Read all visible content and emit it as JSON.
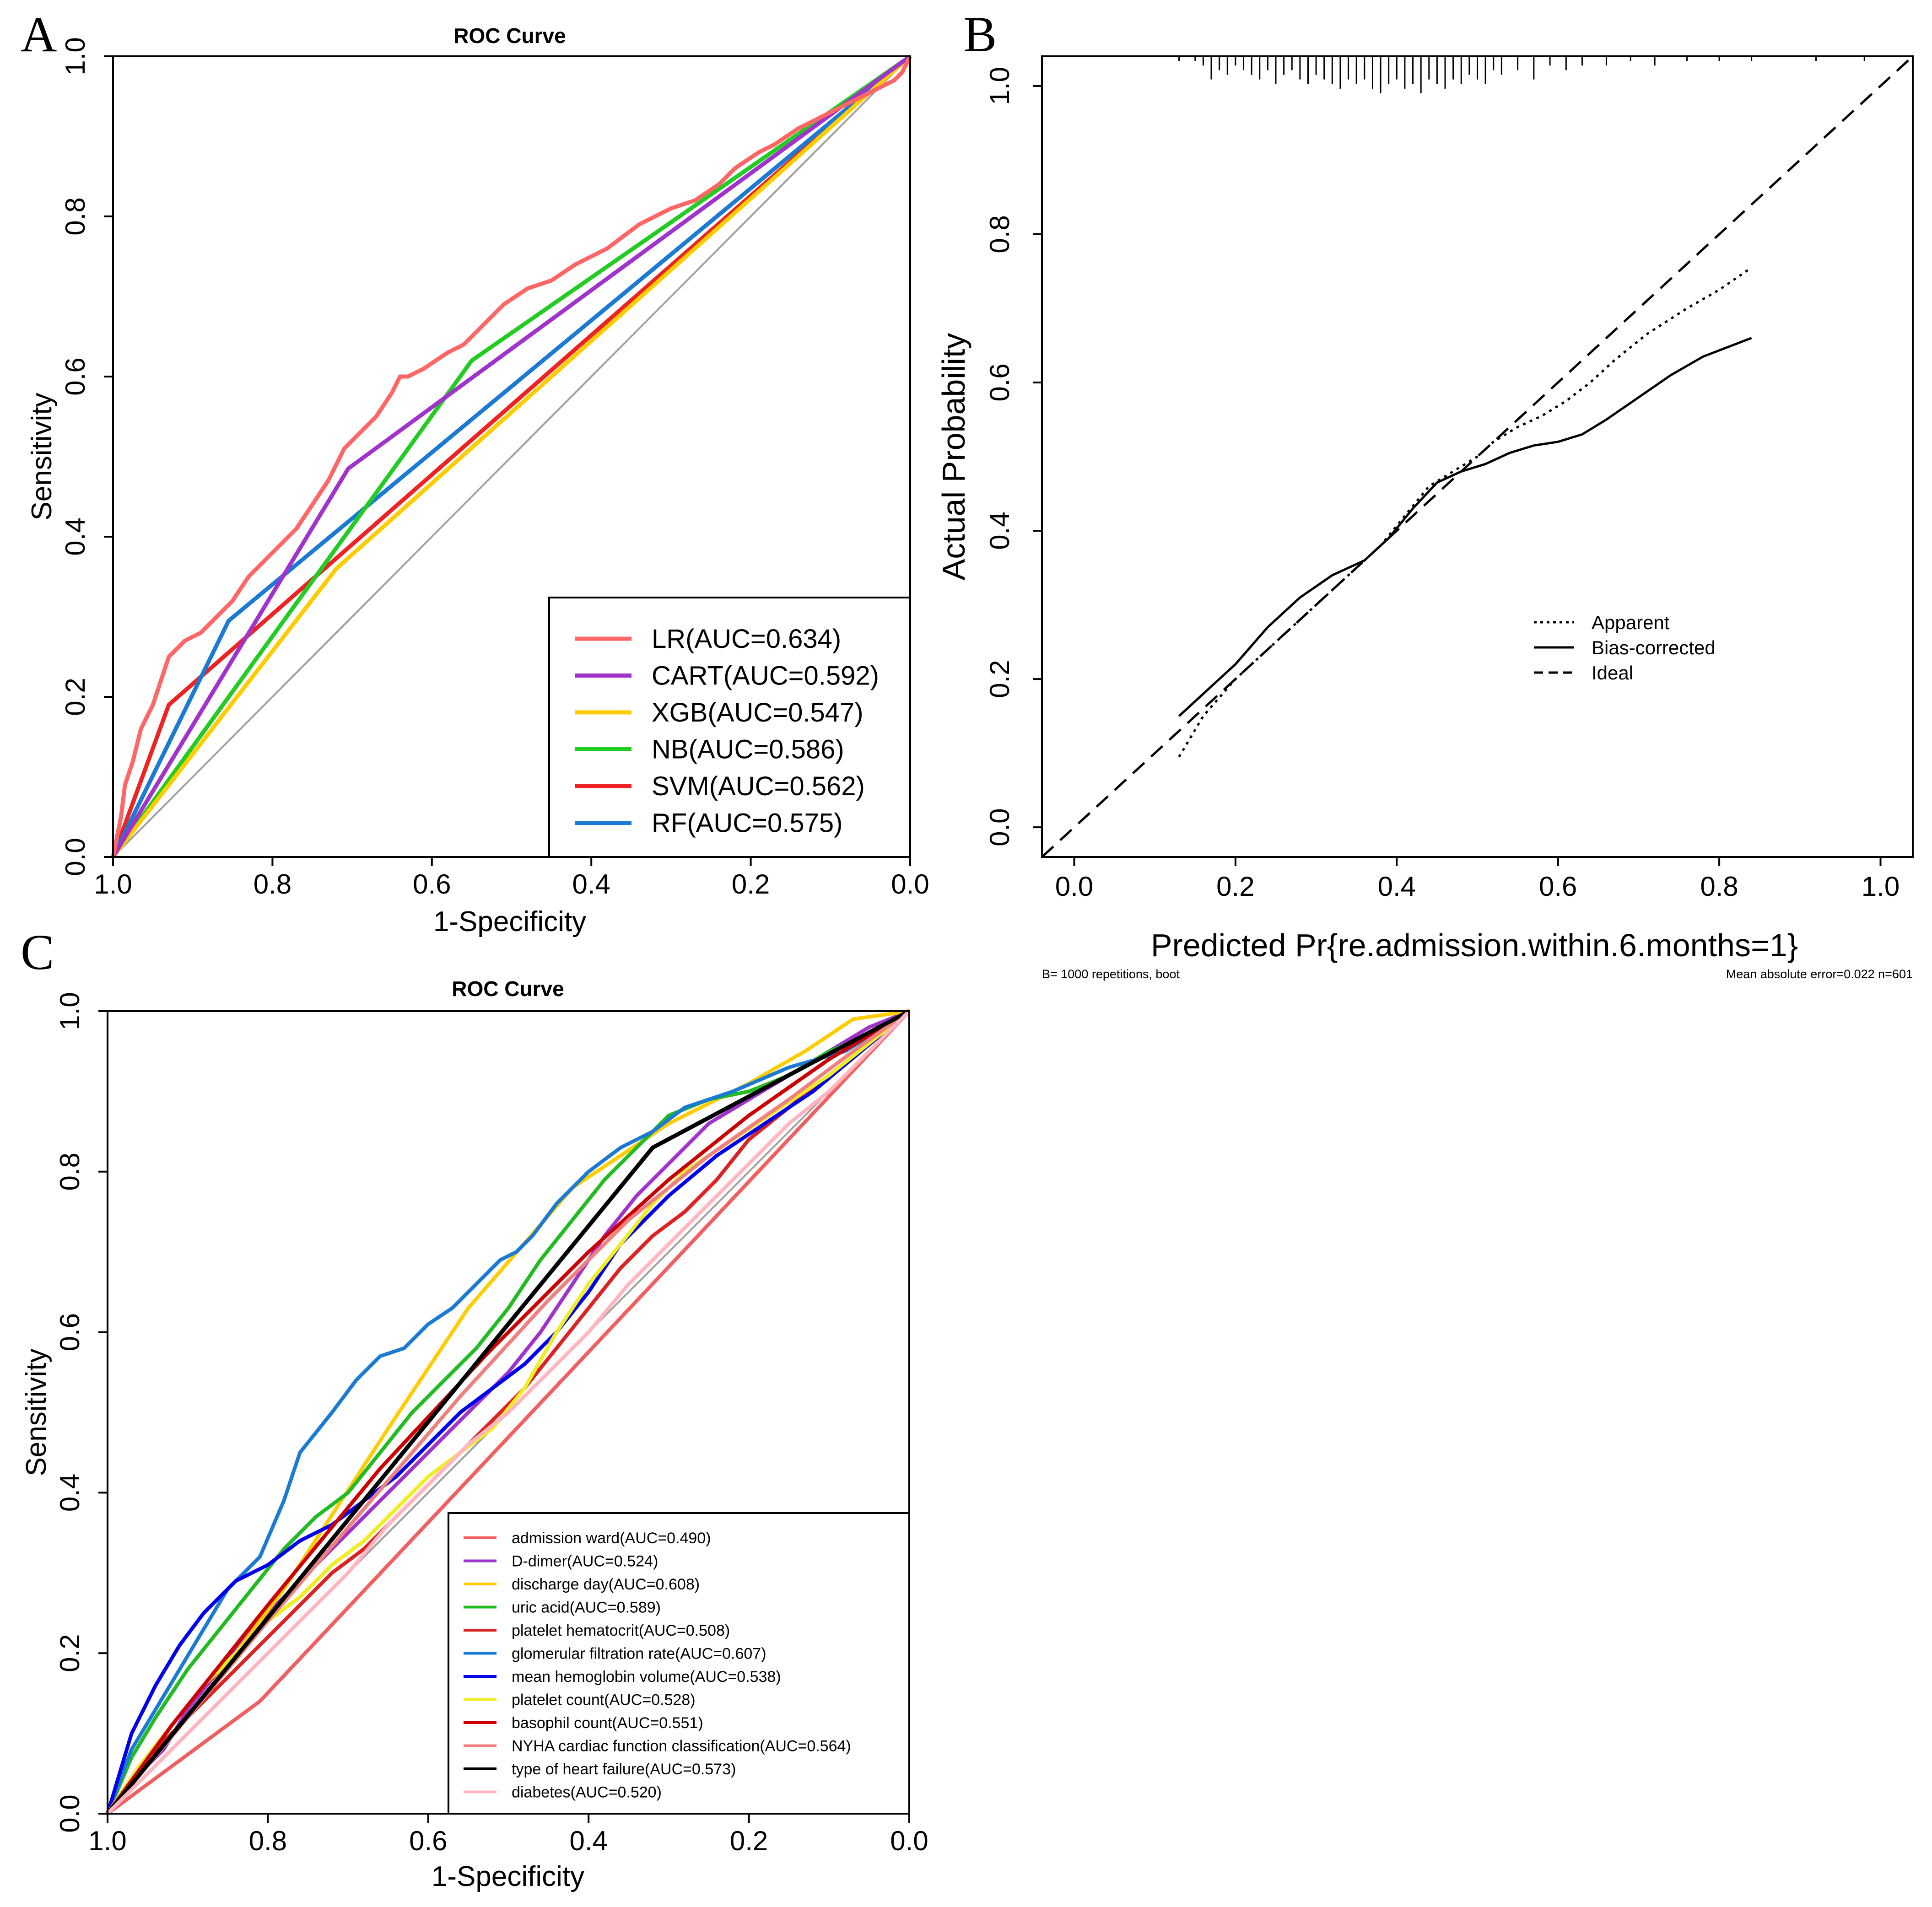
{
  "panels": {
    "A": {
      "label": "A"
    },
    "B": {
      "label": "B"
    },
    "C": {
      "label": "C"
    }
  },
  "chart_data": [
    {
      "id": "A",
      "type": "line",
      "title": "ROC Curve",
      "xlabel": "1-Specificity",
      "ylabel": "Sensitivity",
      "xlim": [
        1.0,
        0.0
      ],
      "ylim": [
        0.0,
        1.0
      ],
      "xticks": [
        "1.0",
        "0.8",
        "0.6",
        "0.4",
        "0.2",
        "0.0"
      ],
      "yticks": [
        "0.0",
        "0.2",
        "0.4",
        "0.6",
        "0.8",
        "1.0"
      ],
      "legend_position": "bottom-right",
      "reference": {
        "color": "#a0a0a0",
        "x": [
          1.0,
          0.0
        ],
        "y": [
          0.0,
          1.0
        ]
      },
      "series": [
        {
          "name": "LR",
          "label": "LR(AUC=0.634)",
          "auc": 0.634,
          "color": "#ff6666",
          "x": [
            1.0,
            0.99,
            0.985,
            0.975,
            0.965,
            0.95,
            0.94,
            0.93,
            0.91,
            0.89,
            0.87,
            0.85,
            0.83,
            0.81,
            0.79,
            0.77,
            0.75,
            0.73,
            0.71,
            0.7,
            0.69,
            0.67,
            0.65,
            0.64,
            0.63,
            0.61,
            0.58,
            0.56,
            0.55,
            0.53,
            0.51,
            0.48,
            0.45,
            0.42,
            0.38,
            0.34,
            0.3,
            0.27,
            0.24,
            0.22,
            0.19,
            0.17,
            0.14,
            0.12,
            0.1,
            0.08,
            0.06,
            0.04,
            0.02,
            0.01,
            0.0
          ],
          "y": [
            0.0,
            0.05,
            0.09,
            0.12,
            0.16,
            0.19,
            0.22,
            0.25,
            0.27,
            0.28,
            0.3,
            0.32,
            0.35,
            0.37,
            0.39,
            0.41,
            0.44,
            0.47,
            0.51,
            0.52,
            0.53,
            0.55,
            0.58,
            0.6,
            0.6,
            0.61,
            0.63,
            0.64,
            0.65,
            0.67,
            0.69,
            0.71,
            0.72,
            0.74,
            0.76,
            0.79,
            0.81,
            0.82,
            0.84,
            0.86,
            0.88,
            0.89,
            0.91,
            0.92,
            0.93,
            0.94,
            0.95,
            0.96,
            0.97,
            0.98,
            1.0
          ]
        },
        {
          "name": "CART",
          "label": "CART(AUC=0.592)",
          "auc": 0.592,
          "color": "#a033cc",
          "x": [
            1.0,
            0.705,
            0.0
          ],
          "y": [
            0.0,
            0.485,
            1.0
          ]
        },
        {
          "name": "XGB",
          "label": "XGB(AUC=0.547)",
          "auc": 0.547,
          "color": "#ffcc00",
          "x": [
            1.0,
            0.72,
            0.0
          ],
          "y": [
            0.0,
            0.36,
            1.0
          ]
        },
        {
          "name": "NB",
          "label": "NB(AUC=0.586)",
          "auc": 0.586,
          "color": "#22cc22",
          "x": [
            1.0,
            0.55,
            0.0
          ],
          "y": [
            0.0,
            0.62,
            1.0
          ]
        },
        {
          "name": "SVM",
          "label": "SVM(AUC=0.562)",
          "auc": 0.562,
          "color": "#ee2222",
          "x": [
            1.0,
            0.93,
            0.0
          ],
          "y": [
            0.0,
            0.19,
            1.0
          ]
        },
        {
          "name": "RF",
          "label": "RF(AUC=0.575)",
          "auc": 0.575,
          "color": "#1a7ad4",
          "x": [
            1.0,
            0.855,
            0.0
          ],
          "y": [
            0.0,
            0.295,
            1.0
          ]
        }
      ]
    },
    {
      "id": "B",
      "type": "line",
      "title": "",
      "xlabel": "Predicted Pr{re.admission.within.6.months=1}",
      "ylabel": "Actual Probability",
      "xlim": [
        -0.04,
        1.04
      ],
      "ylim": [
        -0.04,
        1.04
      ],
      "xticks": [
        "0.0",
        "0.2",
        "0.4",
        "0.6",
        "0.8",
        "1.0"
      ],
      "yticks": [
        "0.0",
        "0.2",
        "0.4",
        "0.6",
        "0.8",
        "1.0"
      ],
      "legend_position": "center-right",
      "footnote_left": "B= 1000 repetitions, boot",
      "footnote_right": "Mean absolute error=0.022 n=601",
      "rug": {
        "y_base": 1.04,
        "max_length": 0.05,
        "x": [
          0.13,
          0.15,
          0.16,
          0.17,
          0.18,
          0.19,
          0.2,
          0.21,
          0.22,
          0.23,
          0.24,
          0.25,
          0.26,
          0.27,
          0.28,
          0.29,
          0.3,
          0.31,
          0.32,
          0.33,
          0.34,
          0.35,
          0.36,
          0.37,
          0.38,
          0.39,
          0.4,
          0.41,
          0.42,
          0.43,
          0.44,
          0.45,
          0.46,
          0.47,
          0.48,
          0.49,
          0.5,
          0.51,
          0.52,
          0.53,
          0.55,
          0.57,
          0.59,
          0.61,
          0.63,
          0.66,
          0.69,
          0.72,
          0.76,
          0.8,
          0.84,
          0.92,
          0.98
        ],
        "counts": [
          1,
          1,
          2,
          5,
          3,
          4,
          2,
          3,
          4,
          5,
          3,
          6,
          4,
          3,
          5,
          6,
          4,
          5,
          6,
          7,
          5,
          6,
          5,
          7,
          8,
          6,
          5,
          7,
          6,
          8,
          5,
          6,
          7,
          5,
          6,
          4,
          5,
          6,
          3,
          4,
          3,
          5,
          2,
          3,
          2,
          2,
          1,
          2,
          1,
          1,
          1,
          1,
          1
        ]
      },
      "series": [
        {
          "name": "Apparent",
          "label": "Apparent",
          "style": "dotted",
          "x": [
            0.13,
            0.16,
            0.2,
            0.25,
            0.3,
            0.35,
            0.38,
            0.41,
            0.44,
            0.47,
            0.5,
            0.52,
            0.55,
            0.58,
            0.61,
            0.64,
            0.67,
            0.71,
            0.76,
            0.8,
            0.84
          ],
          "y": [
            0.095,
            0.15,
            0.2,
            0.25,
            0.3,
            0.35,
            0.38,
            0.42,
            0.46,
            0.48,
            0.5,
            0.52,
            0.54,
            0.555,
            0.575,
            0.6,
            0.63,
            0.665,
            0.7,
            0.725,
            0.755
          ]
        },
        {
          "name": "Bias-corrected",
          "label": "Bias-corrected",
          "style": "solid",
          "x": [
            0.13,
            0.16,
            0.2,
            0.24,
            0.28,
            0.32,
            0.36,
            0.39,
            0.42,
            0.45,
            0.48,
            0.51,
            0.54,
            0.57,
            0.6,
            0.63,
            0.66,
            0.7,
            0.74,
            0.78,
            0.84
          ],
          "y": [
            0.15,
            0.18,
            0.22,
            0.27,
            0.31,
            0.34,
            0.36,
            0.39,
            0.43,
            0.465,
            0.48,
            0.49,
            0.505,
            0.515,
            0.52,
            0.53,
            0.55,
            0.58,
            0.61,
            0.635,
            0.66
          ]
        },
        {
          "name": "Ideal",
          "label": "Ideal",
          "style": "dashed",
          "x": [
            -0.04,
            1.04
          ],
          "y": [
            -0.04,
            1.04
          ]
        }
      ]
    },
    {
      "id": "C",
      "type": "line",
      "title": "ROC Curve",
      "xlabel": "1-Specificity",
      "ylabel": "Sensitivity",
      "xlim": [
        1.0,
        0.0
      ],
      "ylim": [
        0.0,
        1.0
      ],
      "xticks": [
        "1.0",
        "0.8",
        "0.6",
        "0.4",
        "0.2",
        "0.0"
      ],
      "yticks": [
        "0.0",
        "0.2",
        "0.4",
        "0.6",
        "0.8",
        "1.0"
      ],
      "legend_position": "bottom-right",
      "reference": {
        "color": "#a0a0a0",
        "x": [
          1.0,
          0.0
        ],
        "y": [
          0.0,
          1.0
        ]
      },
      "series": [
        {
          "name": "admission ward",
          "label": "admission ward(AUC=0.490)",
          "auc": 0.49,
          "color": "#f06060",
          "x": [
            1.0,
            0.81,
            0.0
          ],
          "y": [
            0.0,
            0.14,
            1.0
          ]
        },
        {
          "name": "D-dimer",
          "label": "D-dimer(AUC=0.524)",
          "auc": 0.524,
          "color": "#a033cc",
          "x": [
            1.0,
            0.96,
            0.93,
            0.9,
            0.86,
            0.82,
            0.78,
            0.74,
            0.7,
            0.66,
            0.62,
            0.58,
            0.54,
            0.5,
            0.46,
            0.42,
            0.38,
            0.34,
            0.3,
            0.25,
            0.2,
            0.15,
            0.1,
            0.05,
            0.0
          ],
          "y": [
            0.0,
            0.05,
            0.08,
            0.13,
            0.18,
            0.23,
            0.27,
            0.31,
            0.35,
            0.39,
            0.43,
            0.47,
            0.51,
            0.55,
            0.6,
            0.66,
            0.72,
            0.77,
            0.81,
            0.86,
            0.89,
            0.92,
            0.95,
            0.98,
            1.0
          ]
        },
        {
          "name": "discharge day",
          "label": "discharge day(AUC=0.608)",
          "auc": 0.608,
          "color": "#ffcc00",
          "x": [
            1.0,
            0.9,
            0.78,
            0.65,
            0.55,
            0.42,
            0.3,
            0.2,
            0.13,
            0.07,
            0.0
          ],
          "y": [
            0.0,
            0.12,
            0.28,
            0.48,
            0.63,
            0.78,
            0.86,
            0.91,
            0.95,
            0.99,
            1.0
          ]
        },
        {
          "name": "uric acid",
          "label": "uric acid(AUC=0.589)",
          "auc": 0.589,
          "color": "#22bb22",
          "x": [
            1.0,
            0.97,
            0.94,
            0.9,
            0.86,
            0.82,
            0.78,
            0.74,
            0.7,
            0.66,
            0.62,
            0.58,
            0.54,
            0.5,
            0.46,
            0.42,
            0.38,
            0.34,
            0.3,
            0.25,
            0.2,
            0.15,
            0.1,
            0.05,
            0.0
          ],
          "y": [
            0.0,
            0.07,
            0.12,
            0.18,
            0.23,
            0.28,
            0.33,
            0.37,
            0.4,
            0.45,
            0.5,
            0.54,
            0.58,
            0.63,
            0.69,
            0.74,
            0.79,
            0.83,
            0.87,
            0.89,
            0.9,
            0.92,
            0.95,
            0.97,
            1.0
          ]
        },
        {
          "name": "platelet hematocrit",
          "label": "platelet hematocrit(AUC=0.508)",
          "auc": 0.508,
          "color": "#dd2222",
          "x": [
            1.0,
            0.96,
            0.92,
            0.88,
            0.84,
            0.8,
            0.76,
            0.72,
            0.68,
            0.64,
            0.6,
            0.56,
            0.52,
            0.48,
            0.44,
            0.4,
            0.36,
            0.32,
            0.28,
            0.24,
            0.2,
            0.15,
            0.1,
            0.05,
            0.0
          ],
          "y": [
            0.0,
            0.06,
            0.1,
            0.14,
            0.18,
            0.22,
            0.26,
            0.3,
            0.33,
            0.37,
            0.41,
            0.45,
            0.49,
            0.53,
            0.58,
            0.63,
            0.68,
            0.72,
            0.75,
            0.79,
            0.84,
            0.88,
            0.92,
            0.96,
            1.0
          ]
        },
        {
          "name": "glomerular filtration rate",
          "label": "glomerular filtration rate(AUC=0.607)",
          "auc": 0.607,
          "color": "#1a7ad4",
          "x": [
            1.0,
            0.97,
            0.94,
            0.91,
            0.88,
            0.85,
            0.81,
            0.78,
            0.76,
            0.72,
            0.69,
            0.66,
            0.63,
            0.6,
            0.57,
            0.54,
            0.51,
            0.49,
            0.47,
            0.44,
            0.4,
            0.36,
            0.32,
            0.28,
            0.22,
            0.15,
            0.08,
            0.0
          ],
          "y": [
            0.0,
            0.08,
            0.13,
            0.18,
            0.23,
            0.28,
            0.32,
            0.39,
            0.45,
            0.5,
            0.54,
            0.57,
            0.58,
            0.61,
            0.63,
            0.66,
            0.69,
            0.7,
            0.72,
            0.76,
            0.8,
            0.83,
            0.85,
            0.88,
            0.9,
            0.93,
            0.95,
            1.0
          ]
        },
        {
          "name": "mean hemoglobin volume",
          "label": "mean hemoglobin volume(AUC=0.538)",
          "auc": 0.538,
          "color": "#0000ee",
          "x": [
            1.0,
            0.97,
            0.94,
            0.91,
            0.88,
            0.84,
            0.8,
            0.76,
            0.72,
            0.68,
            0.64,
            0.6,
            0.56,
            0.52,
            0.48,
            0.44,
            0.4,
            0.36,
            0.3,
            0.24,
            0.18,
            0.12,
            0.06,
            0.0
          ],
          "y": [
            0.0,
            0.1,
            0.16,
            0.21,
            0.25,
            0.29,
            0.31,
            0.34,
            0.36,
            0.39,
            0.42,
            0.46,
            0.5,
            0.53,
            0.56,
            0.6,
            0.65,
            0.71,
            0.77,
            0.82,
            0.86,
            0.9,
            0.95,
            1.0
          ]
        },
        {
          "name": "platelet count",
          "label": "platelet count(AUC=0.528)",
          "auc": 0.528,
          "color": "#eeee22",
          "x": [
            1.0,
            0.96,
            0.92,
            0.88,
            0.84,
            0.8,
            0.76,
            0.72,
            0.68,
            0.64,
            0.6,
            0.56,
            0.52,
            0.48,
            0.44,
            0.4,
            0.36,
            0.32,
            0.28,
            0.22,
            0.16,
            0.1,
            0.05,
            0.0
          ],
          "y": [
            0.0,
            0.06,
            0.11,
            0.16,
            0.2,
            0.24,
            0.27,
            0.31,
            0.34,
            0.38,
            0.42,
            0.45,
            0.48,
            0.53,
            0.6,
            0.66,
            0.71,
            0.76,
            0.8,
            0.84,
            0.88,
            0.92,
            0.96,
            1.0
          ]
        },
        {
          "name": "basophil count",
          "label": "basophil count(AUC=0.551)",
          "auc": 0.551,
          "color": "#cc0000",
          "x": [
            1.0,
            0.92,
            0.8,
            0.66,
            0.52,
            0.4,
            0.3,
            0.2,
            0.1,
            0.0
          ],
          "y": [
            0.0,
            0.11,
            0.26,
            0.43,
            0.58,
            0.7,
            0.79,
            0.87,
            0.94,
            1.0
          ]
        },
        {
          "name": "NYHA cardiac function classification",
          "label": "NYHA cardiac function classification(AUC=0.564)",
          "auc": 0.564,
          "color": "#f08080",
          "x": [
            1.0,
            0.9,
            0.8,
            0.68,
            0.56,
            0.45,
            0.35,
            0.25,
            0.15,
            0.07,
            0.0
          ],
          "y": [
            0.0,
            0.12,
            0.24,
            0.38,
            0.52,
            0.64,
            0.74,
            0.82,
            0.89,
            0.95,
            1.0
          ]
        },
        {
          "name": "type of heart failure",
          "label": "type of heart failure(AUC=0.573)",
          "auc": 0.573,
          "color": "#000000",
          "x": [
            1.0,
            0.32,
            0.0
          ],
          "y": [
            0.0,
            0.83,
            1.0
          ]
        },
        {
          "name": "diabetes",
          "label": "diabetes(AUC=0.520)",
          "auc": 0.52,
          "color": "#ffb6c1",
          "x": [
            1.0,
            0.95,
            0.9,
            0.85,
            0.8,
            0.75,
            0.7,
            0.65,
            0.6,
            0.55,
            0.5,
            0.45,
            0.4,
            0.35,
            0.3,
            0.25,
            0.2,
            0.15,
            0.1,
            0.05,
            0.0
          ],
          "y": [
            0.0,
            0.05,
            0.1,
            0.15,
            0.2,
            0.25,
            0.3,
            0.36,
            0.41,
            0.46,
            0.5,
            0.55,
            0.6,
            0.66,
            0.71,
            0.76,
            0.81,
            0.86,
            0.9,
            0.95,
            1.0
          ]
        }
      ]
    }
  ]
}
